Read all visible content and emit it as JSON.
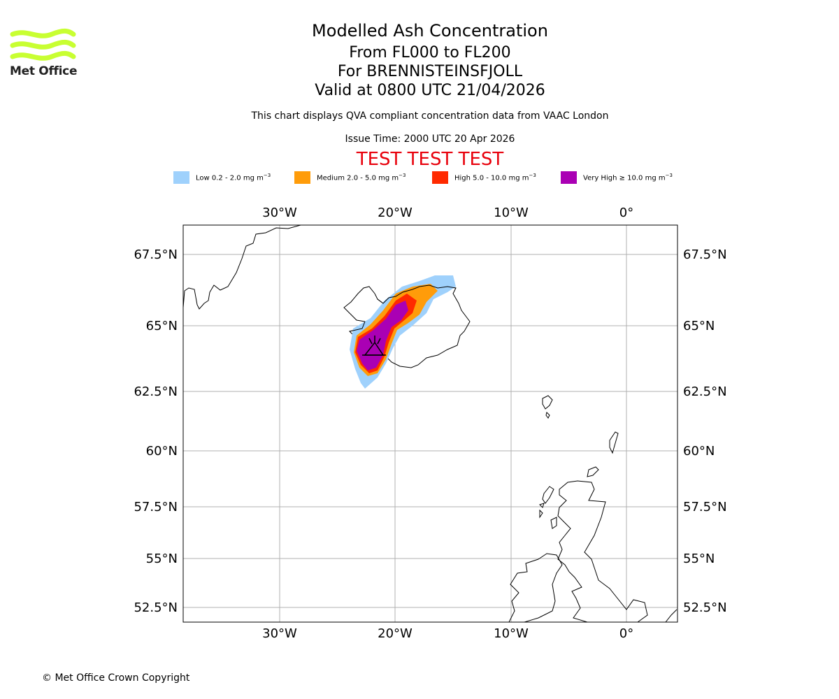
{
  "header": {
    "title": "Modelled Ash Concentration",
    "levels": "From FL000 to FL200",
    "volcano": "For BRENNISTEINSFJOLL",
    "valid": "Valid at 0800 UTC 21/04/2026",
    "note": "This chart displays QVA compliant concentration data from VAAC London",
    "issue_time": "Issue Time: 2000 UTC 20 Apr 2026",
    "test_banner": "TEST TEST TEST"
  },
  "logo": {
    "text": "Met Office",
    "color": "#c8ff32"
  },
  "legend": [
    {
      "label": "Low 0.2 - 2.0 mg m",
      "unit_exp": "−3",
      "color": "#9fd1fc"
    },
    {
      "label": "Medium 2.0 - 5.0 mg m",
      "unit_exp": "−3",
      "color": "#ff9c0a"
    },
    {
      "label": "High 5.0 - 10.0 mg m",
      "unit_exp": "−3",
      "color": "#ff2a00"
    },
    {
      "label": "Very High  ≥  10.0 mg m",
      "unit_exp": "−3",
      "color": "#aa00b4"
    }
  ],
  "map": {
    "lon_ticks": [
      "30°W",
      "20°W",
      "10°W",
      "0°"
    ],
    "lat_ticks": [
      "67.5°N",
      "65°N",
      "62.5°N",
      "60°N",
      "57.5°N",
      "55°N",
      "52.5°N"
    ],
    "volcano_symbol": "volcano-icon"
  },
  "chart_data": {
    "type": "map",
    "title": "Modelled Ash Concentration",
    "levels": [
      "Low",
      "Medium",
      "High",
      "Very High"
    ],
    "lon_range": [
      "38.4°W",
      "4.5°E"
    ],
    "lat_range": [
      "51.8°N",
      "68.7°N"
    ],
    "grid": true
  },
  "footer": {
    "copyright": "© Met Office Crown Copyright"
  }
}
